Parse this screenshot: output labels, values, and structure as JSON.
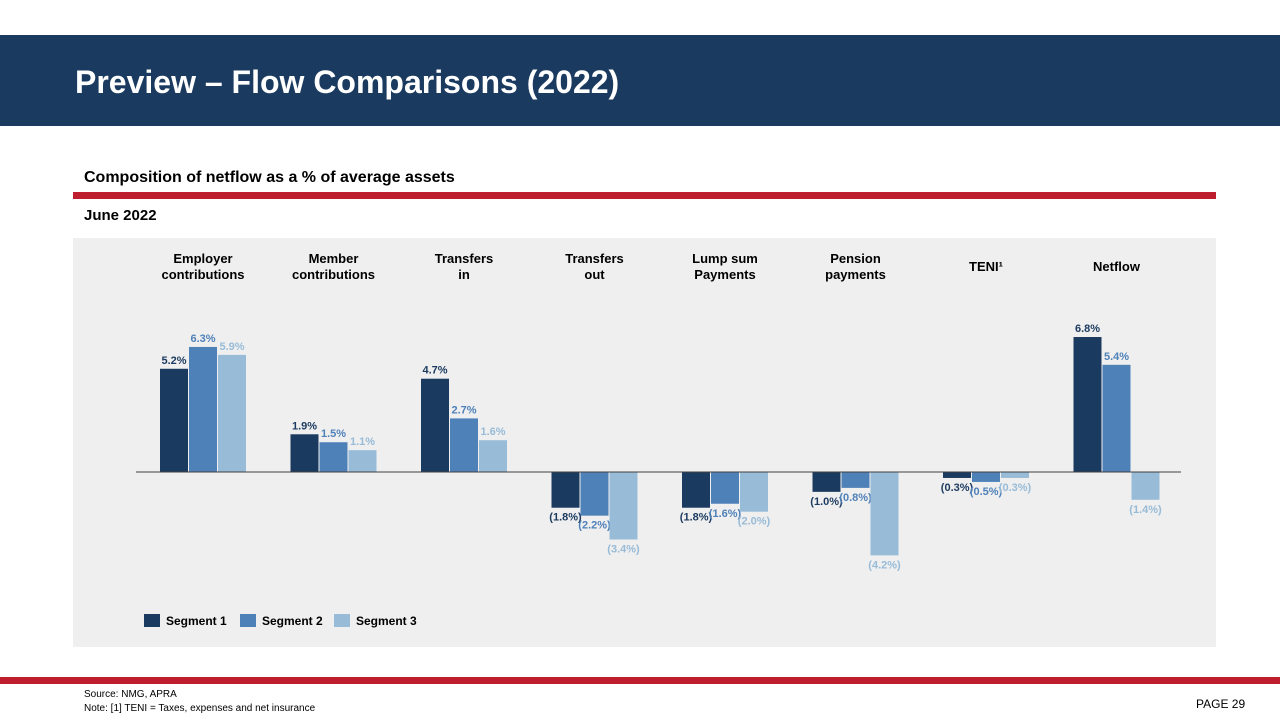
{
  "header": {
    "title": "Preview – Flow Comparisons (2022)"
  },
  "subtitle": "Composition of netflow as a % of average assets",
  "date_label": "June 2022",
  "colors": {
    "header_bg": "#1b3a5f",
    "accent_red": "#bf1e2e",
    "panel_bg": "#efefef"
  },
  "chart_data": {
    "type": "bar",
    "categories": [
      [
        "Employer",
        "contributions"
      ],
      [
        "Member",
        "contributions"
      ],
      [
        "Transfers",
        "in"
      ],
      [
        "Transfers",
        "out"
      ],
      [
        "Lump sum",
        "Payments"
      ],
      [
        "Pension",
        "payments"
      ],
      [
        "TENI¹"
      ],
      [
        "Netflow"
      ]
    ],
    "series": [
      {
        "name": "Segment 1",
        "color": "#1b3a5f",
        "label_color": "#1b3a5f",
        "values": [
          5.2,
          1.9,
          4.7,
          -1.8,
          -1.8,
          -1.0,
          -0.3,
          6.8
        ],
        "labels": [
          "5.2%",
          "1.9%",
          "4.7%",
          "(1.8%)",
          "(1.8%)",
          "(1.0%)",
          "(0.3%)",
          "6.8%"
        ]
      },
      {
        "name": "Segment 2",
        "color": "#4f81b9",
        "label_color": "#4f81b9",
        "values": [
          6.3,
          1.5,
          2.7,
          -2.2,
          -1.6,
          -0.8,
          -0.5,
          5.4
        ],
        "labels": [
          "6.3%",
          "1.5%",
          "2.7%",
          "(2.2%)",
          "(1.6%)",
          "(0.8%)",
          "(0.5%)",
          "5.4%"
        ]
      },
      {
        "name": "Segment 3",
        "color": "#98bbd7",
        "label_color": "#98bbd7",
        "values": [
          5.9,
          1.1,
          1.6,
          -3.4,
          -2.0,
          -4.2,
          -0.3,
          -1.4
        ],
        "labels": [
          "5.9%",
          "1.1%",
          "1.6%",
          "(3.4%)",
          "(2.0%)",
          "(4.2%)",
          "(0.3%)",
          "(1.4%)"
        ]
      }
    ],
    "legend": "bottom-left",
    "grid": false
  },
  "footer": {
    "source": "Source: NMG,  APRA",
    "note": "Note: [1] TENI  = Taxes, expenses and net insurance",
    "page": "PAGE  29"
  }
}
